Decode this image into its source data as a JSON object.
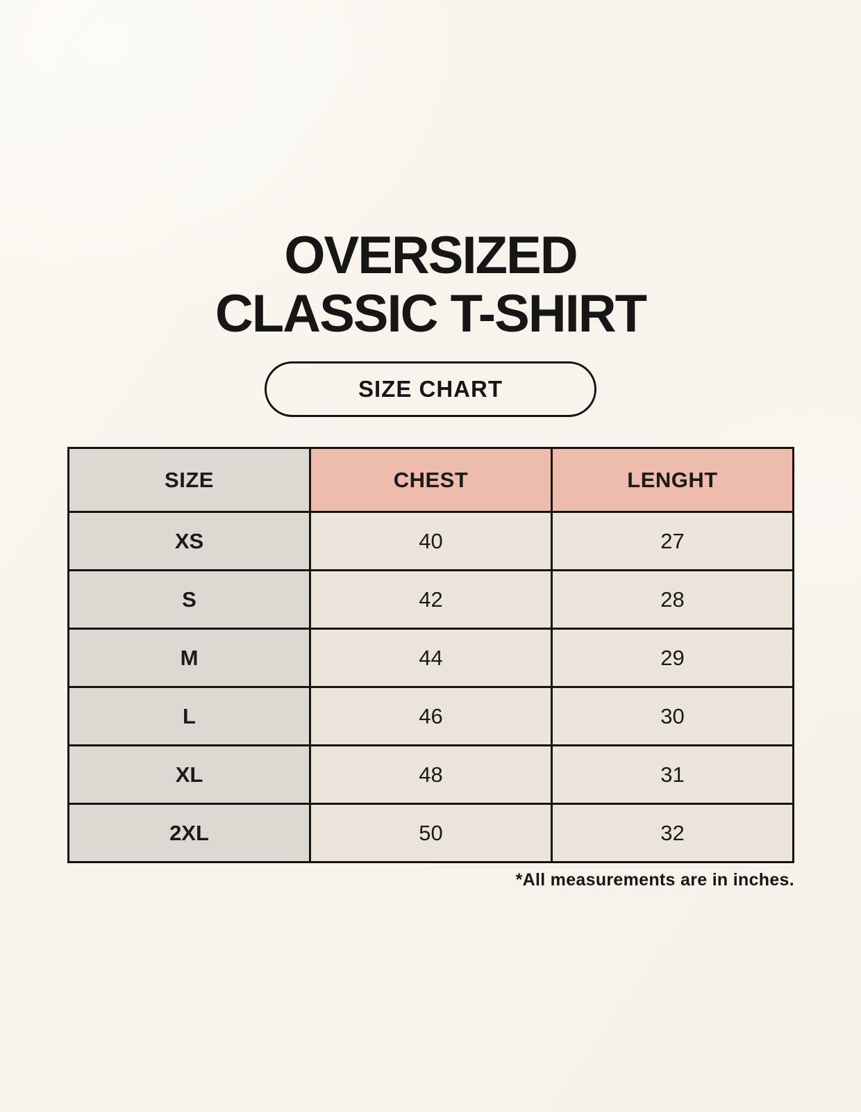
{
  "title": {
    "line1": "OVERSIZED",
    "line2": "CLASSIC T-SHIRT"
  },
  "size_chart_button": {
    "label": "SIZE CHART"
  },
  "table": {
    "headers": [
      "SIZE",
      "CHEST",
      "LENGHT"
    ],
    "rows": [
      {
        "size": "XS",
        "chest": "40",
        "length": "27"
      },
      {
        "size": "S",
        "chest": "42",
        "length": "28"
      },
      {
        "size": "M",
        "chest": "44",
        "length": "29"
      },
      {
        "size": "L",
        "chest": "46",
        "length": "30"
      },
      {
        "size": "XL",
        "chest": "48",
        "length": "31"
      },
      {
        "size": "2XL",
        "chest": "50",
        "length": "32"
      }
    ]
  },
  "footnote": "*All measurements are in inches.",
  "colors": {
    "background": "#f8f4ec",
    "first_column": "#ded8d2",
    "header_accent": "#eebcac",
    "data_cell": "#eae4da",
    "border": "#141414",
    "text": "#1a1a1a"
  }
}
